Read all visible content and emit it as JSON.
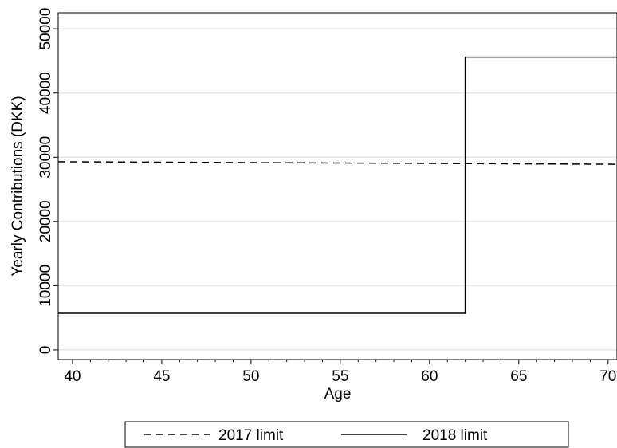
{
  "chart_data": {
    "type": "line",
    "xlabel": "Age",
    "ylabel": "Yearly Contributions (DKK)",
    "xlim": [
      39.2,
      70.5
    ],
    "ylim": [
      -1500,
      52500
    ],
    "x_ticks": [
      40,
      45,
      50,
      55,
      60,
      65,
      70
    ],
    "y_ticks": [
      0,
      10000,
      20000,
      30000,
      40000,
      50000
    ],
    "grid": "horizontal",
    "legend_placement": "bottom",
    "series": [
      {
        "name": "2017 limit",
        "style": "dashed",
        "color": "#000000",
        "x": [
          39.2,
          70.5
        ],
        "y": [
          29300,
          28900
        ]
      },
      {
        "name": "2018 limit",
        "style": "solid",
        "color": "#000000",
        "x": [
          39.2,
          62,
          62,
          70.5
        ],
        "y": [
          5700,
          5700,
          45600,
          45600
        ]
      }
    ]
  }
}
